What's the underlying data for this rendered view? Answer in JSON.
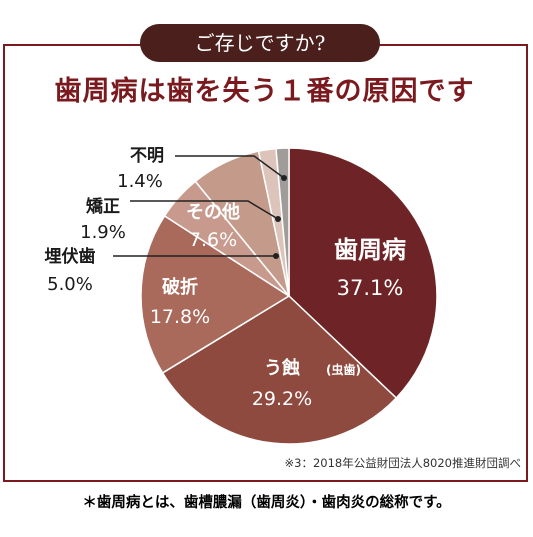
{
  "header": {
    "badge": "ご存じですか?",
    "title": "歯周病は歯を失う１番の原因です"
  },
  "chart_data": {
    "type": "pie",
    "title": "歯周病は歯を失う１番の原因です",
    "start": "12 o'clock, clockwise",
    "series": [
      {
        "name": "歯周病",
        "value": 37.1,
        "label": "37.1%",
        "color": "#6e2426",
        "sub": ""
      },
      {
        "name": "う蝕",
        "value": 29.2,
        "label": "29.2%",
        "color": "#8f4a3f",
        "sub": "(虫歯)"
      },
      {
        "name": "破折",
        "value": 17.8,
        "label": "17.8%",
        "color": "#a96a5c",
        "sub": ""
      },
      {
        "name": "埋伏歯",
        "value": 5.0,
        "label": "5.0%",
        "color": "#c79a8d",
        "sub": ""
      },
      {
        "name": "その他",
        "value": 7.6,
        "label": "7.6%",
        "color": "#c49a8a",
        "sub": ""
      },
      {
        "name": "矯正",
        "value": 1.9,
        "label": "1.9%",
        "color": "#dcc4bb",
        "sub": ""
      },
      {
        "name": "不明",
        "value": 1.4,
        "label": "1.4%",
        "color": "#a09c9a",
        "sub": ""
      }
    ]
  },
  "source_note": "※3：2018年公益財団法人8020推進財団調べ",
  "footnote": "＊歯周病とは、歯槽膿漏（歯周炎）・歯肉炎の総称です。"
}
